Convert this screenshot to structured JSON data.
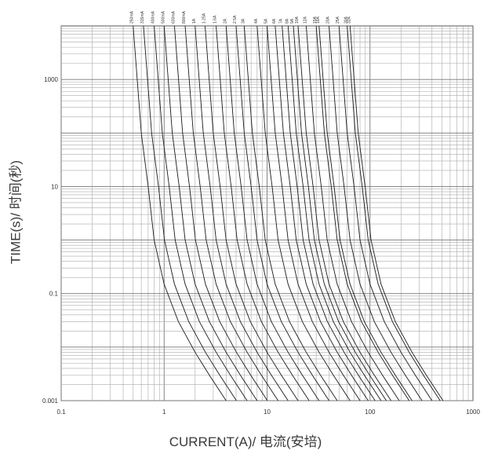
{
  "chart_data": {
    "type": "line",
    "title": "",
    "xlabel": "CURRENT(A)/ 电流(安培)",
    "ylabel": "TIME(s)/ 时间(秒)",
    "xscale": "log",
    "yscale": "log",
    "xlim": [
      0.1,
      1000
    ],
    "ylim": [
      0.001,
      10000
    ],
    "grid": true,
    "x_ticks": [
      {
        "v": 0.1,
        "label": "0.1"
      },
      {
        "v": 1,
        "label": "1"
      },
      {
        "v": 10,
        "label": "10"
      },
      {
        "v": 100,
        "label": "100"
      },
      {
        "v": 1000,
        "label": "1000"
      }
    ],
    "y_ticks": [
      {
        "v": 0.001,
        "label": "0.001"
      },
      {
        "v": 0.1,
        "label": "0.1"
      },
      {
        "v": 10,
        "label": "10"
      },
      {
        "v": 1000,
        "label": "1000"
      }
    ],
    "series": [
      {
        "name": "250mA",
        "rating": 0.25
      },
      {
        "name": "315mA",
        "rating": 0.315
      },
      {
        "name": "400mA",
        "rating": 0.4
      },
      {
        "name": "500mA",
        "rating": 0.5
      },
      {
        "name": "630mA",
        "rating": 0.63
      },
      {
        "name": "800mA",
        "rating": 0.8
      },
      {
        "name": "1A",
        "rating": 1
      },
      {
        "name": "1.25A",
        "rating": 1.25
      },
      {
        "name": "1.6A",
        "rating": 1.6
      },
      {
        "name": "2A",
        "rating": 2
      },
      {
        "name": "2.5A",
        "rating": 2.5
      },
      {
        "name": "3A",
        "rating": 3
      },
      {
        "name": "4A",
        "rating": 4
      },
      {
        "name": "5A",
        "rating": 5
      },
      {
        "name": "6A",
        "rating": 6
      },
      {
        "name": "7A",
        "rating": 7
      },
      {
        "name": "8A",
        "rating": 8
      },
      {
        "name": "9A",
        "rating": 9
      },
      {
        "name": "10A",
        "rating": 10
      },
      {
        "name": "12A",
        "rating": 12
      },
      {
        "name": "15A",
        "rating": 15
      },
      {
        "name": "16A",
        "rating": 16
      },
      {
        "name": "20A",
        "rating": 20
      },
      {
        "name": "25A",
        "rating": 25
      },
      {
        "name": "30A",
        "rating": 30
      },
      {
        "name": "32A",
        "rating": 32
      }
    ]
  }
}
